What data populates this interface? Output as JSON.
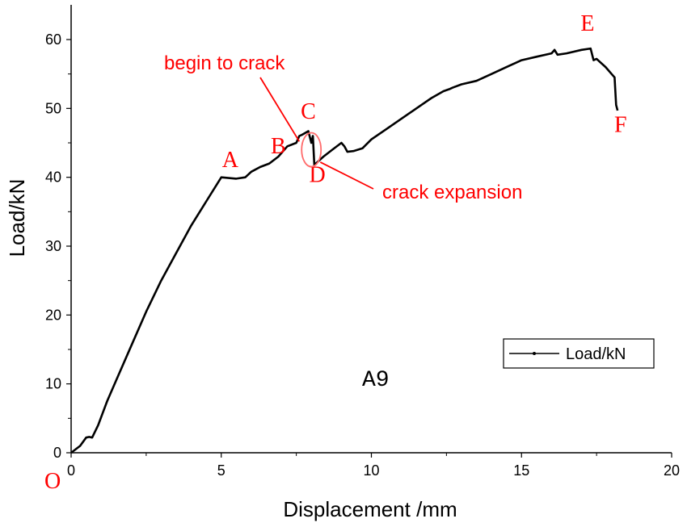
{
  "chart_data": {
    "type": "line",
    "xlabel": "Displacement /mm",
    "ylabel": "Load/kN",
    "xlim": [
      0,
      20
    ],
    "ylim": [
      0,
      65
    ],
    "xticks": [
      0,
      5,
      10,
      15,
      20
    ],
    "yticks": [
      0,
      10,
      20,
      30,
      40,
      50,
      60
    ],
    "origin_label": "O",
    "grid": false,
    "legend": {
      "position": "bottom-right",
      "entries": [
        "Load/kN"
      ]
    },
    "specimen_label": "A9",
    "series": [
      {
        "name": "Load/kN",
        "x": [
          0,
          0.3,
          0.5,
          0.6,
          0.7,
          0.9,
          1.2,
          1.5,
          2.0,
          2.5,
          3.0,
          3.5,
          4.0,
          4.5,
          5.0,
          5.5,
          5.8,
          6.0,
          6.3,
          6.6,
          6.9,
          7.2,
          7.5,
          7.6,
          7.7,
          7.9,
          8.0,
          8.05,
          8.1,
          8.2,
          8.4,
          8.7,
          9.0,
          9.1,
          9.2,
          9.4,
          9.7,
          10.0,
          10.5,
          11.0,
          11.5,
          12.0,
          12.4,
          12.6,
          12.7,
          13.0,
          13.5,
          14.0,
          14.5,
          15.0,
          15.5,
          16.0,
          16.1,
          16.2,
          16.5,
          17.0,
          17.3,
          17.4,
          17.5,
          17.6,
          17.8,
          18.0,
          18.1,
          18.15,
          18.2
        ],
        "y": [
          0,
          1.0,
          2.2,
          2.3,
          2.2,
          4.0,
          7.5,
          10.5,
          15.5,
          20.5,
          25.0,
          29.0,
          33.0,
          36.5,
          40.0,
          39.8,
          40.0,
          40.8,
          41.5,
          42.0,
          43.0,
          44.5,
          45.0,
          46.0,
          46.2,
          46.7,
          45.0,
          46.0,
          41.8,
          42.2,
          43.0,
          44.0,
          45.0,
          44.5,
          43.7,
          43.8,
          44.2,
          45.5,
          47.0,
          48.5,
          50.0,
          51.5,
          52.5,
          52.8,
          53.0,
          53.5,
          54.0,
          55.0,
          56.0,
          57.0,
          57.5,
          58.0,
          58.5,
          57.8,
          58.0,
          58.5,
          58.7,
          57.0,
          57.2,
          56.8,
          56.0,
          55.0,
          54.5,
          50.5,
          49.7
        ]
      }
    ],
    "annotations": [
      {
        "text": "A",
        "x": 5.3,
        "y": 41.5
      },
      {
        "text": "B",
        "x": 6.9,
        "y": 43.5
      },
      {
        "text": "C",
        "x": 7.9,
        "y": 48.5
      },
      {
        "text": "D",
        "x": 8.2,
        "y": 39.3
      },
      {
        "text": "E",
        "x": 17.2,
        "y": 61.3
      },
      {
        "text": "F",
        "x": 18.3,
        "y": 46.6
      }
    ],
    "notes": [
      {
        "text": "begin to crack",
        "x": 7.6,
        "y": 45.2
      },
      {
        "text": "crack expansion",
        "x": 8.3,
        "y": 42.2
      }
    ]
  }
}
